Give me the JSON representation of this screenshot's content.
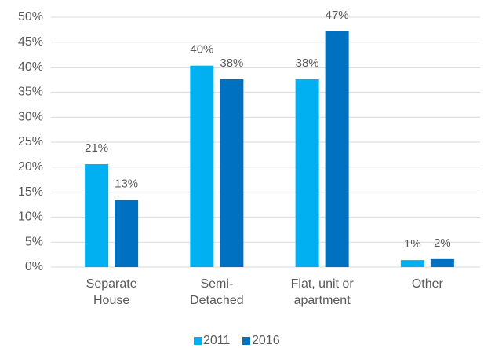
{
  "chart_data": {
    "type": "bar",
    "categories": [
      "Separate\nHouse",
      "Semi-\nDetached",
      "Flat, unit or\napartment",
      "Other"
    ],
    "series": [
      {
        "name": "2011",
        "color": "#00b0f0",
        "values": [
          20.6,
          40.3,
          37.6,
          1.4
        ],
        "value_labels": [
          "21%",
          "40%",
          "38%",
          "1%"
        ]
      },
      {
        "name": "2016",
        "color": "#0070c0",
        "values": [
          13.4,
          37.6,
          47.2,
          1.6
        ],
        "value_labels": [
          "13%",
          "38%",
          "47%",
          "2%"
        ]
      }
    ],
    "ylim": [
      0,
      50
    ],
    "yticks": [
      {
        "value": 0,
        "label": "0%"
      },
      {
        "value": 5,
        "label": "5%"
      },
      {
        "value": 10,
        "label": "10%"
      },
      {
        "value": 15,
        "label": "15%"
      },
      {
        "value": 20,
        "label": "20%"
      },
      {
        "value": 25,
        "label": "25%"
      },
      {
        "value": 30,
        "label": "30%"
      },
      {
        "value": 35,
        "label": "35%"
      },
      {
        "value": 40,
        "label": "40%"
      },
      {
        "value": 45,
        "label": "45%"
      },
      {
        "value": 50,
        "label": "50%"
      }
    ],
    "grid": true,
    "legend": "bottom"
  }
}
